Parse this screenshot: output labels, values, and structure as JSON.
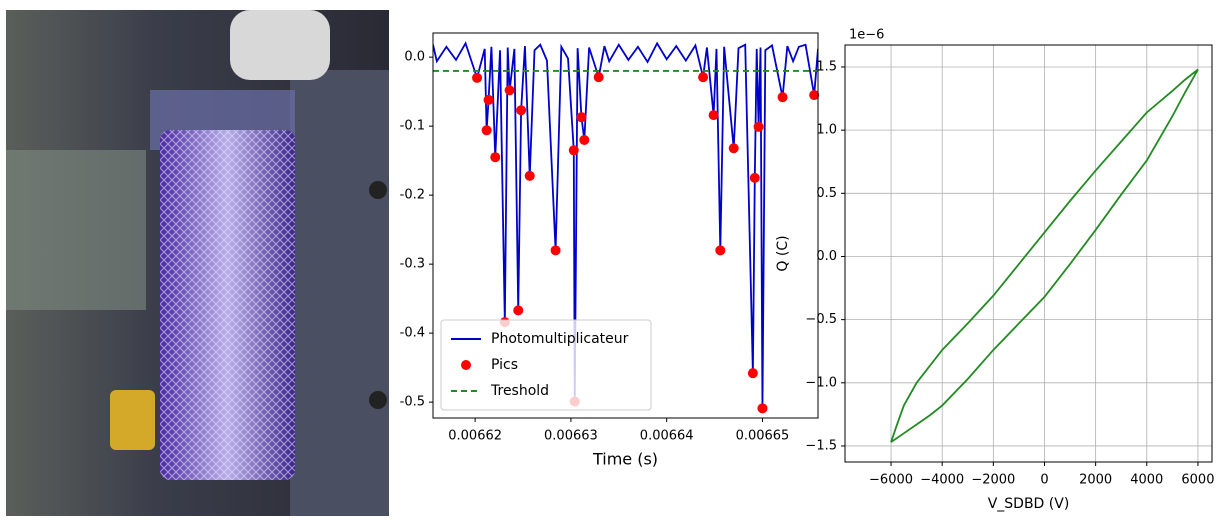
{
  "chart_data": [
    {
      "type": "line",
      "xlabel": "Time (s)",
      "xlim": [
        0.0066156,
        0.0066558
      ],
      "ylim": [
        -0.523,
        0.035
      ],
      "xticks": [
        0.00662,
        0.00663,
        0.00664,
        0.00665
      ],
      "yticks": [
        {
          "value": 0,
          "label": "0.0"
        },
        -0.1,
        -0.2,
        -0.3,
        -0.4,
        -0.5
      ],
      "grid": false,
      "legend": "lower left",
      "series": [
        {
          "name": "Photomultiplicateur",
          "color": "#0000cc",
          "linestyle": "solid",
          "marker": "none",
          "x": [
            0.0066156,
            0.006616,
            0.006617,
            0.006618,
            0.006619,
            0.0066202,
            0.006621,
            0.0066212,
            0.0066214,
            0.0066217,
            0.0066221,
            0.0066226,
            0.0066231,
            0.0066234,
            0.0066236,
            0.0066241,
            0.0066245,
            0.0066248,
            0.0066252,
            0.0066257,
            0.0066262,
            0.0066268,
            0.0066275,
            0.0066284,
            0.006629,
            0.0066297,
            0.0066303,
            0.0066304,
            0.0066307,
            0.0066311,
            0.0066314,
            0.0066319,
            0.0066329,
            0.0066335,
            0.006634,
            0.006635,
            0.006636,
            0.006637,
            0.006638,
            0.006639,
            0.00664,
            0.006641,
            0.006642,
            0.006643,
            0.0066438,
            0.0066442,
            0.0066449,
            0.0066452,
            0.0066456,
            0.006646,
            0.006647,
            0.0066475,
            0.0066482,
            0.006649,
            0.0066492,
            0.0066494,
            0.0066496,
            0.0066498,
            0.00665,
            0.0066503,
            0.006651,
            0.0066521,
            0.0066526,
            0.0066532,
            0.0066538,
            0.0066545,
            0.0066554,
            0.0066558
          ],
          "values": [
            0.018,
            -0.006,
            0.015,
            -0.004,
            0.02,
            -0.03,
            0.012,
            -0.106,
            -0.062,
            0.015,
            -0.145,
            0.01,
            -0.384,
            0.014,
            -0.048,
            0.012,
            -0.367,
            -0.077,
            0.016,
            -0.172,
            0.01,
            0.018,
            -0.005,
            -0.28,
            0.015,
            -0.002,
            -0.135,
            -0.499,
            0.013,
            -0.087,
            -0.12,
            0.014,
            -0.029,
            0.016,
            -0.006,
            0.018,
            -0.004,
            0.015,
            -0.007,
            0.02,
            -0.003,
            0.016,
            -0.005,
            0.017,
            -0.029,
            0.014,
            -0.084,
            0.012,
            -0.28,
            0.015,
            -0.132,
            0.013,
            0.018,
            -0.458,
            -0.175,
            0.012,
            -0.101,
            0.014,
            -0.509,
            0.01,
            0.017,
            -0.058,
            0.016,
            -0.006,
            0.015,
            0.018,
            -0.055,
            0.012
          ]
        },
        {
          "name": "Pics",
          "color": "#ff0000",
          "linestyle": "none",
          "marker": "o",
          "x": [
            0.0066202,
            0.0066212,
            0.0066214,
            0.0066221,
            0.0066231,
            0.0066236,
            0.0066245,
            0.0066248,
            0.0066257,
            0.0066284,
            0.0066303,
            0.0066304,
            0.0066311,
            0.0066314,
            0.0066329,
            0.0066438,
            0.0066449,
            0.0066456,
            0.006647,
            0.006649,
            0.0066492,
            0.0066496,
            0.00665,
            0.0066521,
            0.0066554
          ],
          "values": [
            -0.03,
            -0.106,
            -0.062,
            -0.145,
            -0.384,
            -0.048,
            -0.367,
            -0.077,
            -0.172,
            -0.28,
            -0.135,
            -0.499,
            -0.087,
            -0.12,
            -0.029,
            -0.029,
            -0.084,
            -0.28,
            -0.132,
            -0.458,
            -0.175,
            -0.101,
            -0.509,
            -0.058,
            -0.055
          ]
        },
        {
          "name": "Treshold",
          "color": "#228b22",
          "linestyle": "dashed",
          "marker": "none",
          "x": [
            0.0066156,
            0.0066558
          ],
          "values": [
            -0.02,
            -0.02
          ]
        }
      ]
    },
    {
      "type": "line",
      "xlabel": "V_SDBD (V)",
      "ylabel": "Q (C)",
      "y_offset_label": "1e−6",
      "xlim": [
        -7800,
        6550
      ],
      "ylim": [
        -1.627,
        1.674
      ],
      "xticks": [
        {
          "value": -6000,
          "label": "−6000"
        },
        {
          "value": -4000,
          "label": "−4000"
        },
        {
          "value": -2000,
          "label": "−2000"
        },
        0,
        2000,
        4000,
        6000
      ],
      "yticks": [
        {
          "value": 1.5,
          "label": "1.5"
        },
        {
          "value": 1,
          "label": "1.0"
        },
        {
          "value": 0.5,
          "label": "0.5"
        },
        {
          "value": 0,
          "label": "0.0"
        },
        {
          "value": -0.5,
          "label": "−0.5"
        },
        {
          "value": -1,
          "label": "−1.0"
        },
        {
          "value": -1.5,
          "label": "−1.5"
        }
      ],
      "grid": true,
      "series": [
        {
          "color": "#228b22",
          "linestyle": "solid",
          "marker": "none",
          "x": [
            -6000,
            -5500,
            -5000,
            -4500,
            -4000,
            -3000,
            -2000,
            -1000,
            0,
            1000,
            2000,
            3000,
            4000,
            5000,
            5500,
            6000,
            5500,
            5000,
            4000,
            3000,
            2000,
            1000,
            0,
            -1000,
            -2000,
            -3000,
            -4000,
            -5000,
            -5500,
            -5800,
            -6000
          ],
          "values": [
            -1.47,
            -1.4,
            -1.33,
            -1.26,
            -1.18,
            -0.97,
            -0.74,
            -0.53,
            -0.32,
            -0.06,
            0.21,
            0.49,
            0.76,
            1.11,
            1.3,
            1.48,
            1.4,
            1.31,
            1.14,
            0.91,
            0.68,
            0.44,
            0.19,
            -0.06,
            -0.31,
            -0.53,
            -0.74,
            -1.0,
            -1.18,
            -1.35,
            -1.47
          ]
        }
      ]
    }
  ]
}
